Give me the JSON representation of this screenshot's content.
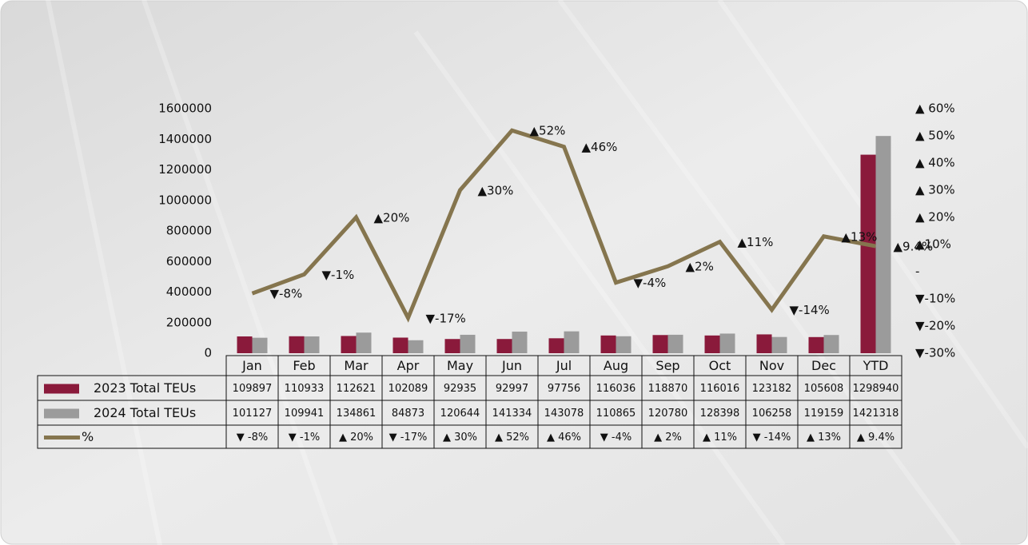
{
  "chart_data": {
    "type": "bar-line-table",
    "categories": [
      "Jan",
      "Feb",
      "Mar",
      "Apr",
      "May",
      "Jun",
      "Jul",
      "Aug",
      "Sep",
      "Oct",
      "Nov",
      "Dec",
      "YTD"
    ],
    "series": [
      {
        "name": "2023 Total TEUs",
        "type": "bar",
        "color": "#8a1a3b",
        "values": [
          109897,
          110933,
          112621,
          102089,
          92935,
          92997,
          97756,
          116036,
          118870,
          116016,
          123182,
          105608,
          1298940
        ]
      },
      {
        "name": "2024 Total TEUs",
        "type": "bar",
        "color": "#9b9b9b",
        "values": [
          101127,
          109941,
          134861,
          84873,
          120644,
          141334,
          143078,
          110865,
          120780,
          128398,
          106258,
          119159,
          1421318
        ]
      },
      {
        "name": "%",
        "type": "line",
        "axis": "y2",
        "color": "#85754e",
        "values": [
          -8,
          -1,
          20,
          -17,
          30,
          52,
          46,
          -4,
          2,
          11,
          -14,
          13,
          9.4
        ],
        "value_labels": [
          "▼-8%",
          "▼-1%",
          "▲20%",
          "▼-17%",
          "▲30%",
          "▲52%",
          "▲46%",
          "▼-4%",
          "▲2%",
          "▲11%",
          "▼-14%",
          "▲13%",
          "▲9.4%"
        ],
        "table_labels": [
          "▼ -8%",
          "▼ -1%",
          "▲ 20%",
          "▼ -17%",
          "▲ 30%",
          "▲ 52%",
          "▲ 46%",
          "▼ -4%",
          "▲ 2%",
          "▲ 11%",
          "▼ -14%",
          "▲ 13%",
          "▲ 9.4%"
        ]
      }
    ],
    "ylim": [
      0,
      1600000
    ],
    "yticks": [
      0,
      200000,
      400000,
      600000,
      800000,
      1000000,
      1200000,
      1400000,
      1600000
    ],
    "y2lim": [
      -30,
      60
    ],
    "y2ticks": [
      {
        "value": -30,
        "label": "▼-30%"
      },
      {
        "value": -20,
        "label": "▼-20%"
      },
      {
        "value": -10,
        "label": "▼-10%"
      },
      {
        "value": 0,
        "label": "-"
      },
      {
        "value": 10,
        "label": "▲10%"
      },
      {
        "value": 20,
        "label": "▲ 20%"
      },
      {
        "value": 30,
        "label": "▲ 30%"
      },
      {
        "value": 40,
        "label": "▲ 40%"
      },
      {
        "value": 50,
        "label": "▲ 50%"
      },
      {
        "value": 60,
        "label": "▲ 60%"
      }
    ],
    "up_color": "#1a8a3c",
    "down_color": "#e8262c"
  }
}
